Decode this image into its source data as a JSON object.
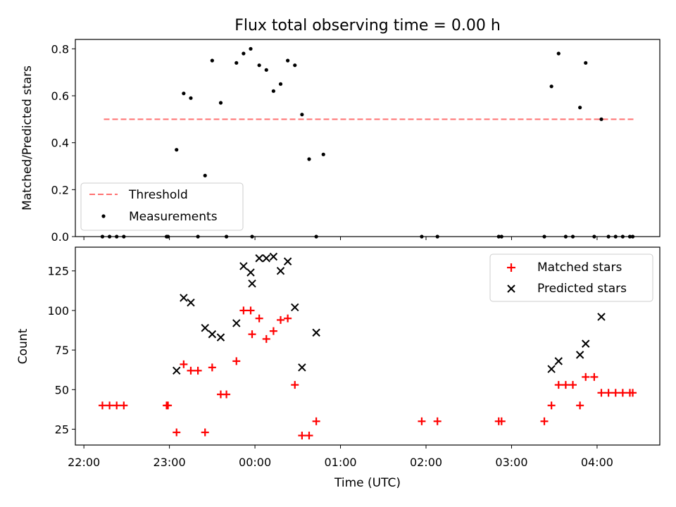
{
  "chart_data": [
    {
      "type": "scatter",
      "title": "Flux total observing time = 0.00 h",
      "ylabel": "Matched/Predicted stars",
      "xlabel": "",
      "xlim": [
        "21:54",
        "04:44"
      ],
      "ylim": [
        0,
        0.84
      ],
      "yticks": [
        0.0,
        0.2,
        0.4,
        0.6,
        0.8
      ],
      "ytick_labels": [
        "0.0",
        "0.2",
        "0.4",
        "0.6",
        "0.8"
      ],
      "grid": false,
      "legend_position": "lower-left",
      "threshold": {
        "name": "Threshold",
        "value": 0.5,
        "x_start": "22:14",
        "x_end": "04:26",
        "color": "#ff7070",
        "style": "dashed"
      },
      "series": [
        {
          "name": "Measurements",
          "color": "#000000",
          "marker": "dot",
          "points": [
            {
              "x": "22:13",
              "y": 0.0
            },
            {
              "x": "22:18",
              "y": 0.0
            },
            {
              "x": "22:23",
              "y": 0.0
            },
            {
              "x": "22:28",
              "y": 0.0
            },
            {
              "x": "22:58",
              "y": 0.0
            },
            {
              "x": "22:59",
              "y": 0.0
            },
            {
              "x": "23:05",
              "y": 0.37
            },
            {
              "x": "23:10",
              "y": 0.61
            },
            {
              "x": "23:15",
              "y": 0.59
            },
            {
              "x": "23:20",
              "y": 0.0
            },
            {
              "x": "23:25",
              "y": 0.26
            },
            {
              "x": "23:30",
              "y": 0.75
            },
            {
              "x": "23:36",
              "y": 0.57
            },
            {
              "x": "23:40",
              "y": 0.0
            },
            {
              "x": "23:47",
              "y": 0.74
            },
            {
              "x": "23:52",
              "y": 0.78
            },
            {
              "x": "23:57",
              "y": 0.8
            },
            {
              "x": "23:58",
              "y": 0.0
            },
            {
              "x": "00:03",
              "y": 0.73
            },
            {
              "x": "00:08",
              "y": 0.71
            },
            {
              "x": "00:13",
              "y": 0.62
            },
            {
              "x": "00:18",
              "y": 0.65
            },
            {
              "x": "00:23",
              "y": 0.75
            },
            {
              "x": "00:28",
              "y": 0.73
            },
            {
              "x": "00:33",
              "y": 0.52
            },
            {
              "x": "00:38",
              "y": 0.33
            },
            {
              "x": "00:43",
              "y": 0.0
            },
            {
              "x": "00:48",
              "y": 0.35
            },
            {
              "x": "01:57",
              "y": 0.0
            },
            {
              "x": "02:08",
              "y": 0.0
            },
            {
              "x": "02:51",
              "y": 0.0
            },
            {
              "x": "02:53",
              "y": 0.0
            },
            {
              "x": "03:23",
              "y": 0.0
            },
            {
              "x": "03:28",
              "y": 0.64
            },
            {
              "x": "03:33",
              "y": 0.78
            },
            {
              "x": "03:38",
              "y": 0.0
            },
            {
              "x": "03:43",
              "y": 0.0
            },
            {
              "x": "03:48",
              "y": 0.55
            },
            {
              "x": "03:52",
              "y": 0.74
            },
            {
              "x": "03:58",
              "y": 0.0
            },
            {
              "x": "04:03",
              "y": 0.5
            },
            {
              "x": "04:08",
              "y": 0.0
            },
            {
              "x": "04:13",
              "y": 0.0
            },
            {
              "x": "04:18",
              "y": 0.0
            },
            {
              "x": "04:23",
              "y": 0.0
            },
            {
              "x": "04:25",
              "y": 0.0
            }
          ]
        }
      ]
    },
    {
      "type": "scatter",
      "title": "",
      "ylabel": "Count",
      "xlabel": "Time (UTC)",
      "xlim": [
        "21:54",
        "04:44"
      ],
      "ylim": [
        15,
        140
      ],
      "yticks": [
        25,
        50,
        75,
        100,
        125
      ],
      "ytick_labels": [
        "25",
        "50",
        "75",
        "100",
        "125"
      ],
      "xticks": [
        "22:00",
        "23:00",
        "00:00",
        "01:00",
        "02:00",
        "03:00",
        "04:00"
      ],
      "xtick_labels": [
        "22:00",
        "23:00",
        "00:00",
        "01:00",
        "02:00",
        "03:00",
        "04:00"
      ],
      "grid": false,
      "legend_position": "upper-right",
      "series": [
        {
          "name": "Matched stars",
          "color": "#ff0000",
          "marker": "plus",
          "points": [
            {
              "x": "22:13",
              "y": 40
            },
            {
              "x": "22:18",
              "y": 40
            },
            {
              "x": "22:23",
              "y": 40
            },
            {
              "x": "22:28",
              "y": 40
            },
            {
              "x": "22:58",
              "y": 40
            },
            {
              "x": "22:59",
              "y": 40
            },
            {
              "x": "23:05",
              "y": 23
            },
            {
              "x": "23:10",
              "y": 66
            },
            {
              "x": "23:15",
              "y": 62
            },
            {
              "x": "23:20",
              "y": 62
            },
            {
              "x": "23:25",
              "y": 23
            },
            {
              "x": "23:30",
              "y": 64
            },
            {
              "x": "23:36",
              "y": 47
            },
            {
              "x": "23:40",
              "y": 47
            },
            {
              "x": "23:47",
              "y": 68
            },
            {
              "x": "23:52",
              "y": 100
            },
            {
              "x": "23:57",
              "y": 100
            },
            {
              "x": "23:58",
              "y": 85
            },
            {
              "x": "00:03",
              "y": 95
            },
            {
              "x": "00:08",
              "y": 82
            },
            {
              "x": "00:13",
              "y": 87
            },
            {
              "x": "00:18",
              "y": 94
            },
            {
              "x": "00:23",
              "y": 95
            },
            {
              "x": "00:28",
              "y": 53
            },
            {
              "x": "00:33",
              "y": 21
            },
            {
              "x": "00:38",
              "y": 21
            },
            {
              "x": "00:43",
              "y": 30
            },
            {
              "x": "01:57",
              "y": 30
            },
            {
              "x": "02:08",
              "y": 30
            },
            {
              "x": "02:51",
              "y": 30
            },
            {
              "x": "02:53",
              "y": 30
            },
            {
              "x": "03:23",
              "y": 30
            },
            {
              "x": "03:28",
              "y": 40
            },
            {
              "x": "03:33",
              "y": 53
            },
            {
              "x": "03:38",
              "y": 53
            },
            {
              "x": "03:43",
              "y": 53
            },
            {
              "x": "03:48",
              "y": 40
            },
            {
              "x": "03:52",
              "y": 58
            },
            {
              "x": "03:58",
              "y": 58
            },
            {
              "x": "04:03",
              "y": 48
            },
            {
              "x": "04:08",
              "y": 48
            },
            {
              "x": "04:13",
              "y": 48
            },
            {
              "x": "04:18",
              "y": 48
            },
            {
              "x": "04:23",
              "y": 48
            },
            {
              "x": "04:25",
              "y": 48
            }
          ]
        },
        {
          "name": "Predicted stars",
          "color": "#000000",
          "marker": "cross",
          "points": [
            {
              "x": "23:05",
              "y": 62
            },
            {
              "x": "23:10",
              "y": 108
            },
            {
              "x": "23:15",
              "y": 105
            },
            {
              "x": "23:25",
              "y": 89
            },
            {
              "x": "23:30",
              "y": 85
            },
            {
              "x": "23:36",
              "y": 83
            },
            {
              "x": "23:47",
              "y": 92
            },
            {
              "x": "23:52",
              "y": 128
            },
            {
              "x": "23:57",
              "y": 124
            },
            {
              "x": "23:58",
              "y": 117
            },
            {
              "x": "00:03",
              "y": 133
            },
            {
              "x": "00:08",
              "y": 133
            },
            {
              "x": "00:13",
              "y": 134
            },
            {
              "x": "00:18",
              "y": 125
            },
            {
              "x": "00:23",
              "y": 131
            },
            {
              "x": "00:28",
              "y": 102
            },
            {
              "x": "00:33",
              "y": 64
            },
            {
              "x": "00:43",
              "y": 86
            },
            {
              "x": "03:28",
              "y": 63
            },
            {
              "x": "03:33",
              "y": 68
            },
            {
              "x": "03:48",
              "y": 72
            },
            {
              "x": "03:52",
              "y": 79
            },
            {
              "x": "04:03",
              "y": 96
            }
          ]
        }
      ]
    }
  ]
}
